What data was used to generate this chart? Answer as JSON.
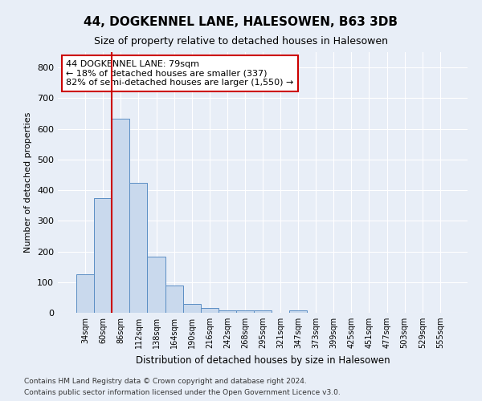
{
  "title": "44, DOGKENNEL LANE, HALESOWEN, B63 3DB",
  "subtitle": "Size of property relative to detached houses in Halesowen",
  "xlabel": "Distribution of detached houses by size in Halesowen",
  "ylabel": "Number of detached properties",
  "bar_labels": [
    "34sqm",
    "60sqm",
    "86sqm",
    "112sqm",
    "138sqm",
    "164sqm",
    "190sqm",
    "216sqm",
    "242sqm",
    "268sqm",
    "295sqm",
    "321sqm",
    "347sqm",
    "373sqm",
    "399sqm",
    "425sqm",
    "451sqm",
    "477sqm",
    "503sqm",
    "529sqm",
    "555sqm"
  ],
  "bar_values": [
    125,
    375,
    633,
    425,
    182,
    90,
    30,
    15,
    8,
    8,
    8,
    0,
    8,
    0,
    0,
    0,
    0,
    0,
    0,
    0,
    0
  ],
  "bar_color": "#c9d9ed",
  "bar_edge_color": "#5b8ec4",
  "property_line_x": 1.5,
  "property_line_color": "#cc0000",
  "annotation_line1": "44 DOGKENNEL LANE: 79sqm",
  "annotation_line2": "← 18% of detached houses are smaller (337)",
  "annotation_line3": "82% of semi-detached houses are larger (1,550) →",
  "annotation_box_color": "#ffffff",
  "annotation_box_edge": "#cc0000",
  "ylim": [
    0,
    850
  ],
  "yticks": [
    0,
    100,
    200,
    300,
    400,
    500,
    600,
    700,
    800
  ],
  "footnote1": "Contains HM Land Registry data © Crown copyright and database right 2024.",
  "footnote2": "Contains public sector information licensed under the Open Government Licence v3.0.",
  "background_color": "#e8eef7",
  "grid_color": "#ffffff"
}
